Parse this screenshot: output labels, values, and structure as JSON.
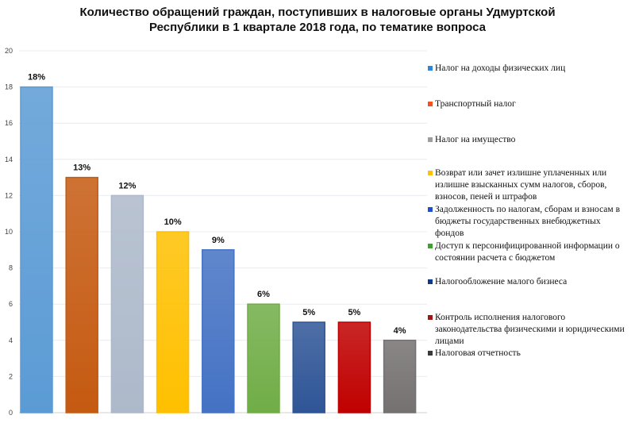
{
  "chart_data": {
    "type": "bar",
    "title_lines": [
      "Количество обращений граждан, поступивших в налоговые органы Удмуртской",
      "Республики в 1 квартале 2018 года, по тематике вопроса"
    ],
    "xlabel": "",
    "ylabel": "",
    "ylim": [
      0,
      20
    ],
    "yticks": [
      0,
      2,
      4,
      6,
      8,
      10,
      12,
      14,
      16,
      18,
      20
    ],
    "grid": true,
    "legend_position": "right",
    "categories": [
      "Налог на доходы физических лиц",
      "Транспортный налог",
      "Налог на имущество",
      "Возврат или зачет излишне уплаченных или излишне взысканных сумм налогов, сборов, взносов, пеней и штрафов",
      "Задолженность по налогам, сборам и взносам в бюджеты государственных внебюджетных фондов",
      "Доступ к персонифицированной информации о состоянии расчета с бюджетом",
      "Налогообложение малого бизнеса",
      "Контроль исполнения налогового законодательства физическими и юридическими лицами",
      "Налоговая отчетность"
    ],
    "values": [
      18,
      13,
      12,
      10,
      9,
      6,
      5,
      5,
      4
    ],
    "data_labels": [
      "18%",
      "13%",
      "12%",
      "10%",
      "9%",
      "6%",
      "5%",
      "5%",
      "4%"
    ],
    "colors": [
      "#5b9bd5",
      "#c55a11",
      "#adb9ca",
      "#ffc000",
      "#4472c4",
      "#70ad47",
      "#2f5597",
      "#c00000",
      "#757171"
    ],
    "legend_colors": [
      "#2e86de",
      "#f4511e",
      "#9e9e9e",
      "#ffc107",
      "#1e4fcf",
      "#3ea02e",
      "#0d3a8a",
      "#a31515",
      "#3a3a3a"
    ],
    "legend_lines": [
      [
        "Налог на доходы физических лиц"
      ],
      [
        "Транспортный налог"
      ],
      [
        "Налог на имущество"
      ],
      [
        "Возврат или зачет излишне уплаченных или",
        "излишне взысканных сумм налогов, сборов,",
        "взносов, пеней и штрафов"
      ],
      [
        "Задолженность по налогам, сборам и взносам в",
        "бюджеты государственных внебюджетных",
        "фондов"
      ],
      [
        "Доступ к персонифицированной информации о",
        "состоянии расчета с бюджетом"
      ],
      [
        "Налогообложение малого бизнеса"
      ],
      [
        "Контроль исполнения налогового",
        "законодательства физическими и юридическими",
        "лицами"
      ],
      [
        "Налоговая отчетность"
      ]
    ]
  }
}
